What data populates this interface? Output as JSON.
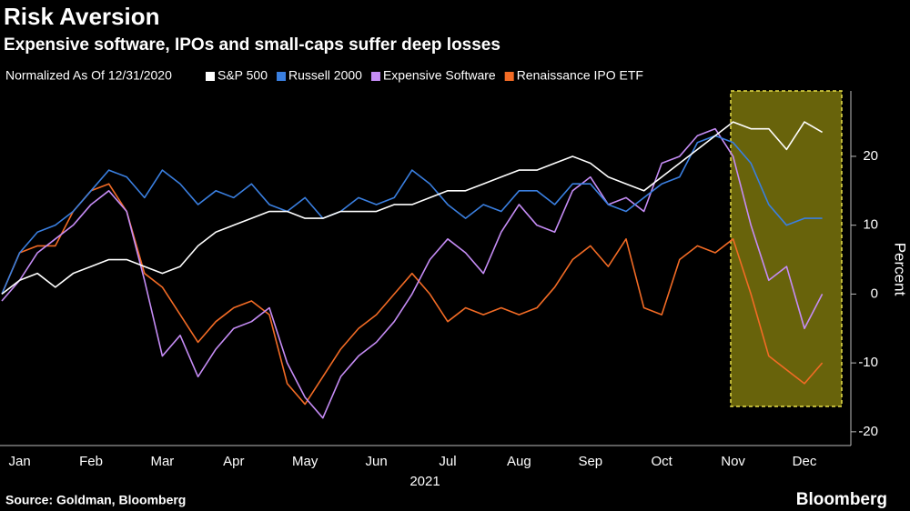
{
  "chart_data": {
    "type": "line",
    "title": "Risk Aversion",
    "subtitle": "Expensive software, IPOs and small-caps suffer deep losses",
    "legend_title": "Normalized As Of 12/31/2020",
    "ylabel": "Percent",
    "xlabel": "2021",
    "source": "Source: Goldman, Bloomberg",
    "brand": "Bloomberg",
    "categories": [
      null,
      "Jan",
      null,
      null,
      null,
      "Feb",
      null,
      null,
      null,
      "Mar",
      null,
      null,
      null,
      "Apr",
      null,
      null,
      null,
      "May",
      null,
      null,
      null,
      "Jun",
      null,
      null,
      null,
      "Jul",
      null,
      null,
      null,
      "Aug",
      null,
      null,
      null,
      "Sep",
      null,
      null,
      null,
      "Oct",
      null,
      null,
      null,
      "Nov",
      null,
      null,
      null,
      "Dec",
      null
    ],
    "series": [
      {
        "name": "S&P 500",
        "color": "#ffffff",
        "values": [
          0,
          2,
          3,
          1,
          3,
          4,
          5,
          5,
          4,
          3,
          4,
          7,
          9,
          10,
          11,
          12,
          12,
          11,
          11,
          12,
          12,
          12,
          13,
          13,
          14,
          15,
          15,
          16,
          17,
          18,
          18,
          19,
          20,
          19,
          17,
          16,
          15,
          17,
          19,
          21,
          23,
          25,
          24,
          24,
          21,
          25,
          23.5
        ]
      },
      {
        "name": "Russell 2000",
        "color": "#3a7fe0",
        "values": [
          0,
          6,
          9,
          10,
          12,
          15,
          18,
          17,
          14,
          18,
          16,
          13,
          15,
          14,
          16,
          13,
          12,
          14,
          11,
          12,
          14,
          13,
          14,
          18,
          16,
          13,
          11,
          13,
          12,
          15,
          15,
          13,
          16,
          16,
          13,
          12,
          14,
          16,
          17,
          22,
          23,
          22,
          19,
          13,
          10,
          11,
          11
        ]
      },
      {
        "name": "Expensive Software",
        "color": "#c58cf5",
        "values": [
          -1,
          2,
          6,
          8,
          10,
          13,
          15,
          12,
          2,
          -9,
          -6,
          -12,
          -8,
          -5,
          -4,
          -2,
          -10,
          -15,
          -18,
          -12,
          -9,
          -7,
          -4,
          0,
          5,
          8,
          6,
          3,
          9,
          13,
          10,
          9,
          15,
          17,
          13,
          14,
          12,
          19,
          20,
          23,
          24,
          20,
          10,
          2,
          4,
          -5,
          0
        ]
      },
      {
        "name": "Renaissance IPO ETF",
        "color": "#f26b25",
        "values": [
          0,
          6,
          7,
          7,
          12,
          15,
          16,
          12,
          3,
          1,
          -3,
          -7,
          -4,
          -2,
          -1,
          -3,
          -13,
          -16,
          -12,
          -8,
          -5,
          -3,
          0,
          3,
          0,
          -4,
          -2,
          -3,
          -2,
          -3,
          -2,
          1,
          5,
          7,
          4,
          8,
          -2,
          -3,
          5,
          7,
          6,
          8,
          0,
          -9,
          -11,
          -13,
          -10
        ]
      }
    ],
    "ylim": [
      -22,
      29.5
    ],
    "yticks": [
      -20,
      -10,
      0,
      10,
      20
    ],
    "grid": false
  }
}
